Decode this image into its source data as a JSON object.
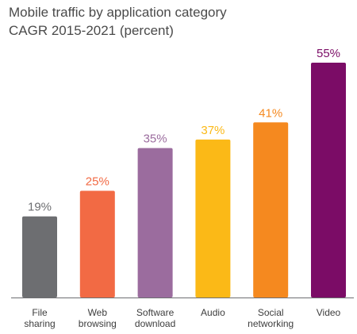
{
  "chart_data": {
    "type": "bar",
    "title_lines": [
      "Mobile traffic by application category",
      "CAGR 2015-2021 (percent)"
    ],
    "xlabel": "",
    "ylabel": "",
    "ylim": [
      0,
      55
    ],
    "grid": false,
    "legend": "none",
    "categories": [
      [
        "File",
        "sharing"
      ],
      [
        "Web",
        "browsing"
      ],
      [
        "Software",
        "download"
      ],
      [
        "Audio"
      ],
      [
        "Social",
        "networking"
      ],
      [
        "Video"
      ]
    ],
    "values": [
      19,
      25,
      35,
      37,
      41,
      55
    ],
    "value_labels": [
      "19%",
      "25%",
      "35%",
      "37%",
      "41%",
      "55%"
    ],
    "bar_colors": [
      "#6d6e71",
      "#f26a44",
      "#9b6c9e",
      "#fbb917",
      "#f5891f",
      "#7b0c66"
    ],
    "label_colors": [
      "#6d6e71",
      "#f26a44",
      "#9b6c9e",
      "#fbb917",
      "#f5891f",
      "#7b0c66"
    ],
    "axis_color": "#6d6e71"
  }
}
